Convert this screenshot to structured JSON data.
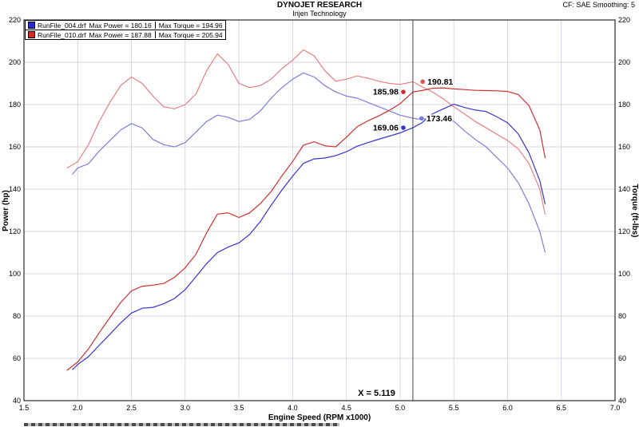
{
  "header": {
    "title": "DYNOJET RESEARCH",
    "subtitle": "Injen Technology",
    "note": "CF: SAE Smoothing: 5"
  },
  "legend": {
    "rows": [
      {
        "file": "RunFile_004.drf",
        "power": "Max Power = 180.16",
        "torque": "Max Torque = 194.96",
        "color": "#2a2acc"
      },
      {
        "file": "RunFile_010.drf",
        "power": "Max Power = 187.88",
        "torque": "Max Torque = 205.94",
        "color": "#cc2a2a"
      }
    ]
  },
  "chart_data": {
    "type": "line",
    "title": "DYNOJET RESEARCH",
    "subtitle": "Injen Technology",
    "correction_note": "CF: SAE Smoothing: 5",
    "xlabel": "Engine Speed (RPM x1000)",
    "ylabel_left": "Power (hp)",
    "ylabel_right": "Torque (ft-lbs)",
    "xlim": [
      1.5,
      7.0
    ],
    "ylim": [
      40,
      220
    ],
    "x_ticks": [
      1.5,
      2.0,
      2.5,
      3.0,
      3.5,
      4.0,
      4.5,
      5.0,
      5.5,
      6.0,
      6.5,
      7.0
    ],
    "y_ticks": [
      40,
      60,
      80,
      100,
      120,
      140,
      160,
      180,
      200,
      220
    ],
    "grid": true,
    "cursor": {
      "x": 5.119,
      "label": "X = 5.119"
    },
    "markers": [
      {
        "x": 5.03,
        "value": 185.98,
        "label": "185.98",
        "side": "left",
        "color": "#d02f2f"
      },
      {
        "x": 5.21,
        "value": 190.81,
        "label": "190.81",
        "side": "right",
        "color": "#e05555"
      },
      {
        "x": 5.03,
        "value": 169.06,
        "label": "169.06",
        "side": "left",
        "color": "#3535cf"
      },
      {
        "x": 5.2,
        "value": 173.46,
        "label": "173.46",
        "side": "right",
        "color": "#7d7ddd"
      }
    ],
    "series": [
      {
        "id": "run004-torque",
        "name": "RunFile_004.drf Torque (ft-lbs)",
        "max": 194.96,
        "color": "#7d7ddd",
        "points": [
          [
            1.95,
            147
          ],
          [
            2.0,
            150
          ],
          [
            2.1,
            152
          ],
          [
            2.2,
            158
          ],
          [
            2.3,
            163
          ],
          [
            2.4,
            168
          ],
          [
            2.5,
            171
          ],
          [
            2.6,
            169
          ],
          [
            2.7,
            163.5
          ],
          [
            2.8,
            161
          ],
          [
            2.9,
            160
          ],
          [
            3.0,
            162
          ],
          [
            3.1,
            167
          ],
          [
            3.2,
            172
          ],
          [
            3.3,
            175
          ],
          [
            3.4,
            174
          ],
          [
            3.5,
            172
          ],
          [
            3.6,
            173
          ],
          [
            3.7,
            177
          ],
          [
            3.8,
            183
          ],
          [
            3.9,
            188
          ],
          [
            4.0,
            192
          ],
          [
            4.1,
            195
          ],
          [
            4.2,
            193
          ],
          [
            4.3,
            189
          ],
          [
            4.4,
            186
          ],
          [
            4.5,
            184
          ],
          [
            4.6,
            183
          ],
          [
            4.7,
            181
          ],
          [
            4.8,
            179
          ],
          [
            4.9,
            177
          ],
          [
            5.0,
            175
          ],
          [
            5.12,
            173.5
          ],
          [
            5.2,
            173
          ],
          [
            5.3,
            174
          ],
          [
            5.4,
            173
          ],
          [
            5.5,
            172.1
          ],
          [
            5.6,
            167.5
          ],
          [
            5.7,
            163.5
          ],
          [
            5.8,
            160
          ],
          [
            5.9,
            155
          ],
          [
            6.0,
            150
          ],
          [
            6.1,
            143
          ],
          [
            6.2,
            133
          ],
          [
            6.3,
            120
          ],
          [
            6.35,
            110
          ]
        ]
      },
      {
        "id": "run010-torque",
        "name": "RunFile_010.drf Torque (ft-lbs)",
        "max": 205.94,
        "color": "#e87f7f",
        "points": [
          [
            1.9,
            150
          ],
          [
            2.0,
            153
          ],
          [
            2.1,
            161
          ],
          [
            2.2,
            172
          ],
          [
            2.3,
            181
          ],
          [
            2.4,
            189
          ],
          [
            2.5,
            193
          ],
          [
            2.6,
            190
          ],
          [
            2.7,
            184
          ],
          [
            2.8,
            179
          ],
          [
            2.9,
            178
          ],
          [
            3.0,
            180
          ],
          [
            3.1,
            185
          ],
          [
            3.2,
            196
          ],
          [
            3.3,
            204
          ],
          [
            3.4,
            199
          ],
          [
            3.5,
            190
          ],
          [
            3.6,
            188
          ],
          [
            3.7,
            189
          ],
          [
            3.8,
            192
          ],
          [
            3.9,
            197
          ],
          [
            4.0,
            201
          ],
          [
            4.1,
            205.9
          ],
          [
            4.2,
            203
          ],
          [
            4.3,
            196
          ],
          [
            4.4,
            191
          ],
          [
            4.5,
            192
          ],
          [
            4.6,
            193.5
          ],
          [
            4.7,
            192.5
          ],
          [
            4.8,
            191
          ],
          [
            4.9,
            190
          ],
          [
            5.0,
            189.5
          ],
          [
            5.12,
            190.8
          ],
          [
            5.2,
            188.5
          ],
          [
            5.3,
            186
          ],
          [
            5.4,
            182.7
          ],
          [
            5.5,
            179
          ],
          [
            5.6,
            175.5
          ],
          [
            5.7,
            172
          ],
          [
            5.8,
            169
          ],
          [
            5.9,
            166
          ],
          [
            6.0,
            163
          ],
          [
            6.1,
            159
          ],
          [
            6.2,
            152
          ],
          [
            6.3,
            140
          ],
          [
            6.35,
            128
          ]
        ]
      },
      {
        "id": "run004-power",
        "name": "RunFile_004.drf Power (hp)",
        "max": 180.16,
        "color": "#3535cf",
        "points": [
          [
            1.95,
            54.6
          ],
          [
            2.0,
            57.1
          ],
          [
            2.1,
            60.8
          ],
          [
            2.2,
            66.2
          ],
          [
            2.3,
            71.4
          ],
          [
            2.4,
            76.8
          ],
          [
            2.5,
            81.4
          ],
          [
            2.6,
            83.7
          ],
          [
            2.7,
            84.1
          ],
          [
            2.8,
            85.8
          ],
          [
            2.9,
            88.3
          ],
          [
            3.0,
            92.5
          ],
          [
            3.1,
            98.6
          ],
          [
            3.2,
            104.8
          ],
          [
            3.3,
            110.0
          ],
          [
            3.4,
            112.6
          ],
          [
            3.5,
            114.6
          ],
          [
            3.6,
            118.6
          ],
          [
            3.7,
            124.7
          ],
          [
            3.8,
            132.4
          ],
          [
            3.9,
            139.6
          ],
          [
            4.0,
            146.2
          ],
          [
            4.1,
            152.2
          ],
          [
            4.2,
            154.3
          ],
          [
            4.3,
            154.7
          ],
          [
            4.4,
            155.8
          ],
          [
            4.5,
            157.7
          ],
          [
            4.6,
            160.3
          ],
          [
            4.7,
            162.0
          ],
          [
            4.8,
            163.6
          ],
          [
            4.9,
            165.1
          ],
          [
            5.0,
            166.6
          ],
          [
            5.12,
            169.1
          ],
          [
            5.2,
            171.3
          ],
          [
            5.3,
            175.6
          ],
          [
            5.4,
            177.9
          ],
          [
            5.5,
            180.2
          ],
          [
            5.6,
            178.6
          ],
          [
            5.7,
            177.4
          ],
          [
            5.8,
            176.7
          ],
          [
            5.9,
            174.2
          ],
          [
            6.0,
            171.4
          ],
          [
            6.1,
            166.1
          ],
          [
            6.2,
            157.0
          ],
          [
            6.3,
            144.0
          ],
          [
            6.35,
            133.0
          ]
        ]
      },
      {
        "id": "run010-power",
        "name": "RunFile_010.drf Power (hp)",
        "max": 187.88,
        "color": "#d02f2f",
        "points": [
          [
            1.9,
            54.3
          ],
          [
            2.0,
            58.3
          ],
          [
            2.1,
            64.4
          ],
          [
            2.2,
            72.1
          ],
          [
            2.3,
            79.3
          ],
          [
            2.4,
            86.4
          ],
          [
            2.5,
            91.9
          ],
          [
            2.6,
            94.1
          ],
          [
            2.7,
            94.6
          ],
          [
            2.8,
            95.4
          ],
          [
            2.9,
            98.3
          ],
          [
            3.0,
            102.8
          ],
          [
            3.1,
            109.2
          ],
          [
            3.2,
            119.4
          ],
          [
            3.3,
            128.2
          ],
          [
            3.4,
            128.8
          ],
          [
            3.5,
            126.6
          ],
          [
            3.6,
            128.8
          ],
          [
            3.7,
            133.2
          ],
          [
            3.8,
            138.9
          ],
          [
            3.9,
            146.3
          ],
          [
            4.0,
            153.1
          ],
          [
            4.1,
            160.8
          ],
          [
            4.2,
            162.4
          ],
          [
            4.3,
            160.5
          ],
          [
            4.4,
            160.0
          ],
          [
            4.5,
            164.5
          ],
          [
            4.6,
            169.5
          ],
          [
            4.7,
            172.3
          ],
          [
            4.8,
            174.6
          ],
          [
            4.9,
            177.3
          ],
          [
            5.0,
            180.4
          ],
          [
            5.12,
            186.0
          ],
          [
            5.2,
            186.6
          ],
          [
            5.3,
            187.7
          ],
          [
            5.4,
            187.9
          ],
          [
            5.5,
            187.4
          ],
          [
            5.6,
            187.1
          ],
          [
            5.7,
            186.7
          ],
          [
            5.8,
            186.6
          ],
          [
            5.9,
            186.5
          ],
          [
            6.0,
            186.2
          ],
          [
            6.1,
            184.7
          ],
          [
            6.2,
            179.4
          ],
          [
            6.3,
            168.0
          ],
          [
            6.35,
            154.7
          ]
        ]
      }
    ]
  }
}
